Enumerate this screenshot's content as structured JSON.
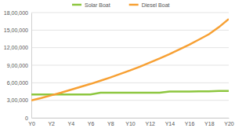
{
  "chart_data": {
    "type": "line",
    "categories": [
      "Y0",
      null,
      "Y2",
      null,
      "Y4",
      null,
      "Y6",
      null,
      "Y8",
      null,
      "Y10",
      null,
      "Y12",
      null,
      "Y14",
      null,
      "Y16",
      null,
      "Y18",
      null,
      "Y20"
    ],
    "series": [
      {
        "name": "Solar Boat",
        "color": "#8dc63f",
        "values": [
          400000,
          400000,
          400000,
          400000,
          400000,
          400000,
          400000,
          430000,
          430000,
          430000,
          430000,
          430000,
          430000,
          430000,
          450000,
          450000,
          450000,
          455000,
          455000,
          460000,
          460000
        ]
      },
      {
        "name": "Diesel Boat",
        "color": "#f7a033",
        "values": [
          300000,
          340000,
          385000,
          430000,
          480000,
          530000,
          580000,
          635000,
          690000,
          750000,
          810000,
          875000,
          945000,
          1015000,
          1090000,
          1170000,
          1250000,
          1340000,
          1430000,
          1550000,
          1690000
        ]
      }
    ],
    "ylim": [
      0,
      1800000
    ],
    "yticks": [
      0,
      {
        "value": 300000,
        "label": "3,00,000"
      },
      {
        "value": 600000,
        "label": "6,00,000"
      },
      {
        "value": 900000,
        "label": "9,00,000"
      },
      {
        "value": 1200000,
        "label": "12,00,000"
      },
      {
        "value": 1500000,
        "label": "15,00,000"
      },
      {
        "value": 1800000,
        "label": "18,00,000"
      }
    ],
    "grid": true,
    "legend": "top"
  }
}
